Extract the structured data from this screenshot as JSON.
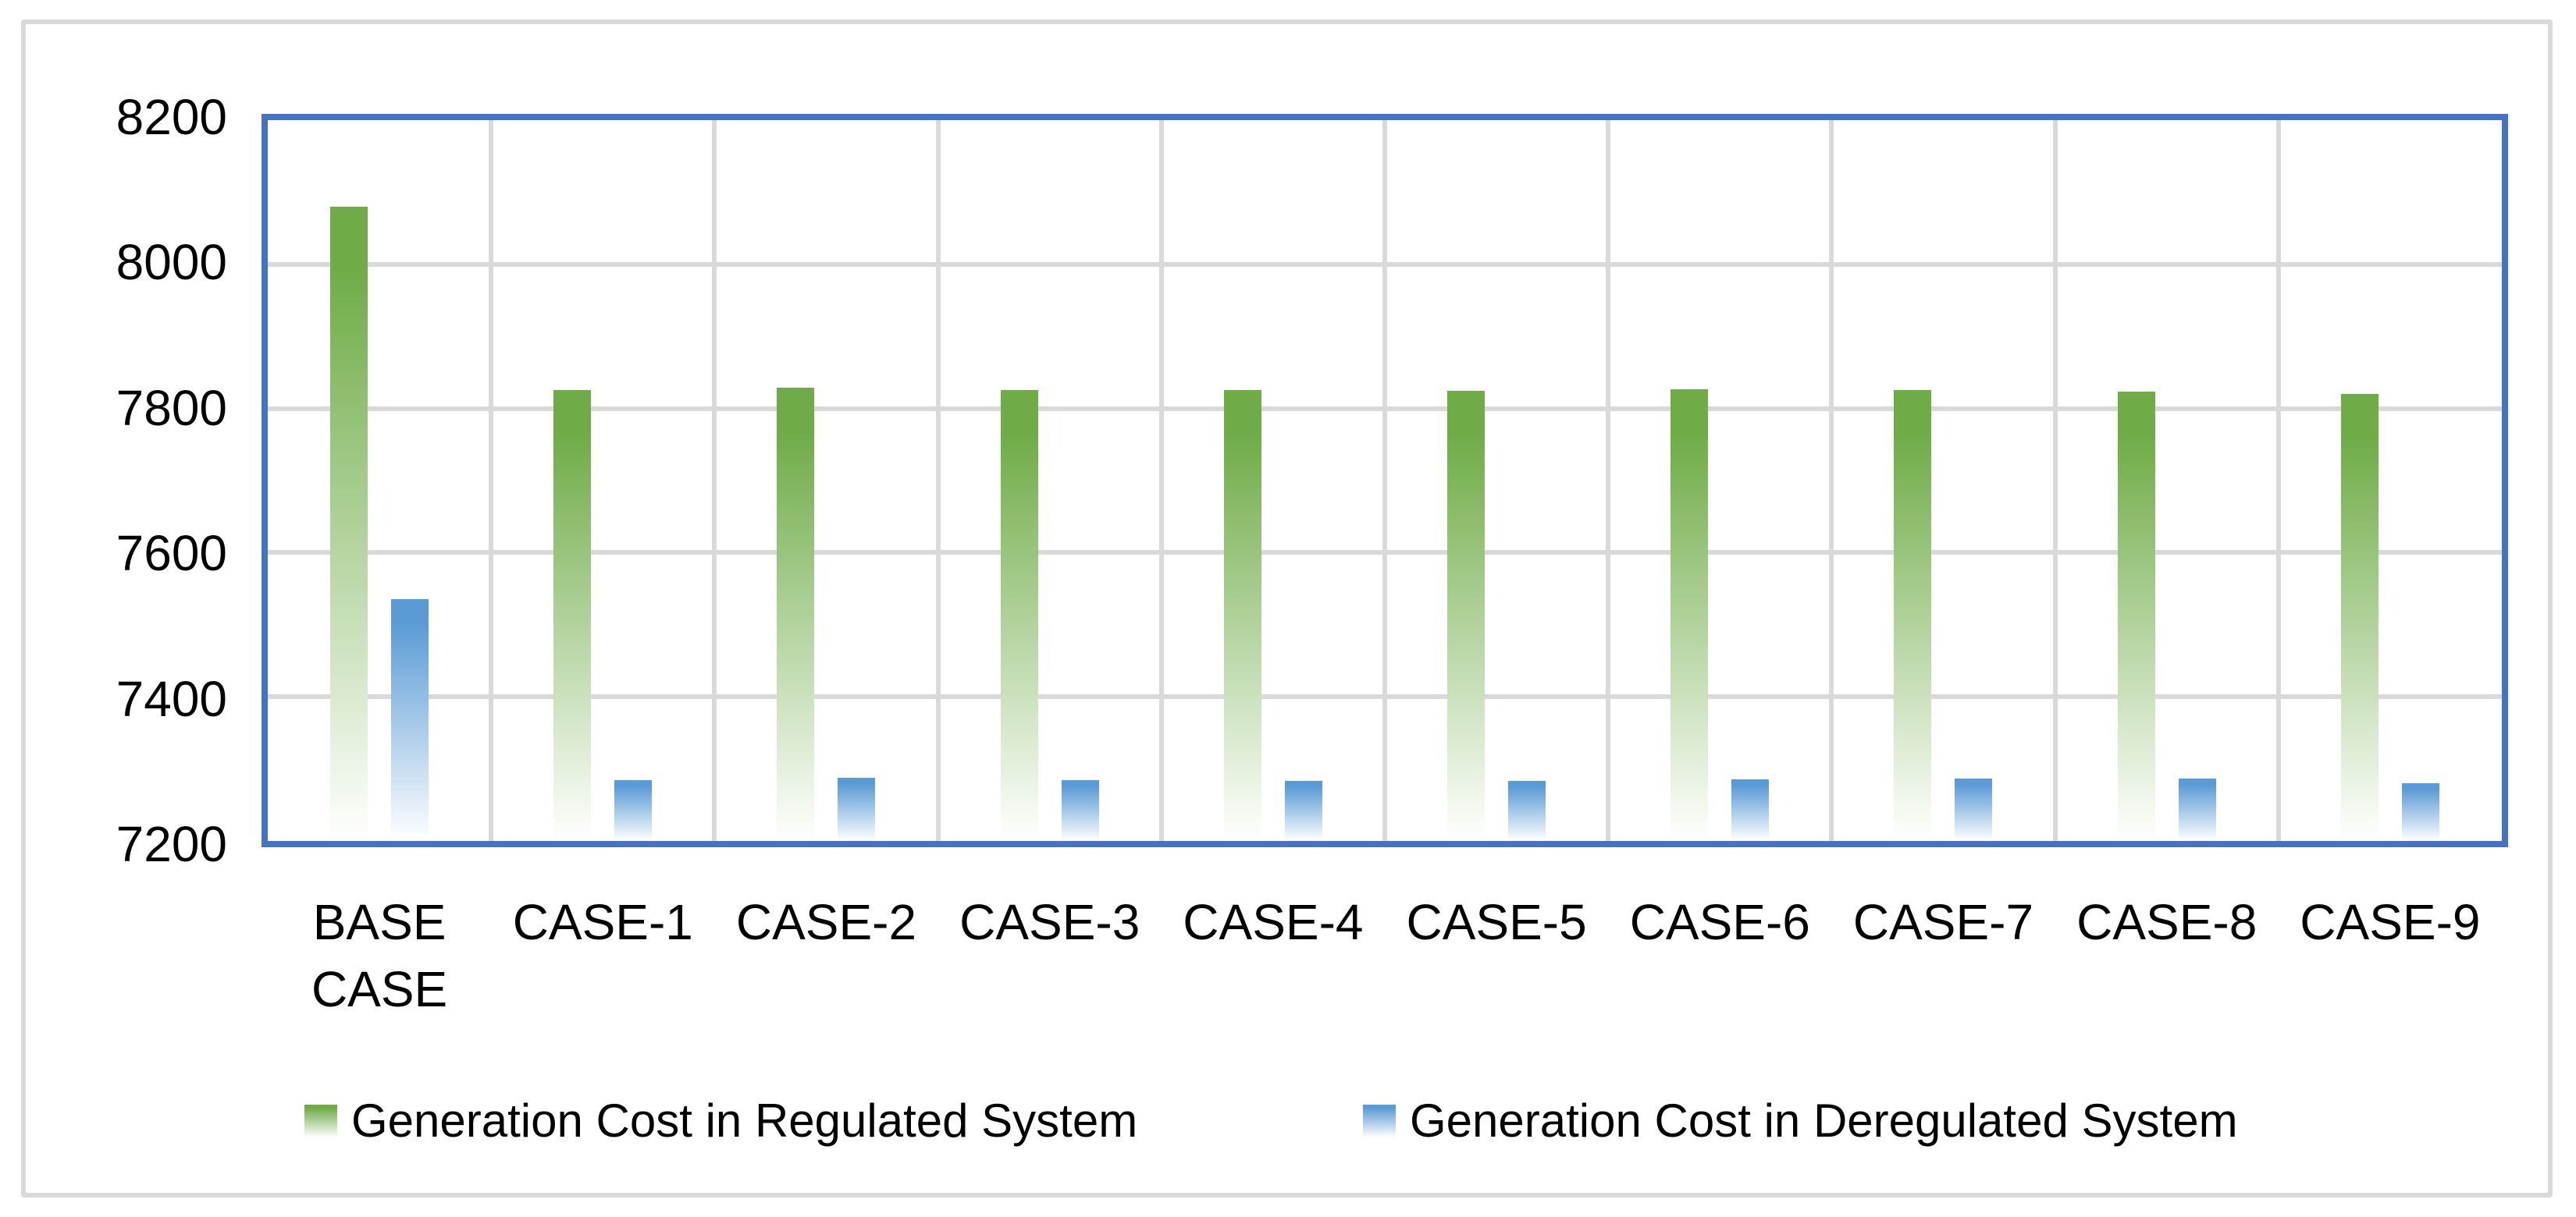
{
  "figure": {
    "background_color": "#FFFFFF",
    "frame_color": "#D9D9D9"
  },
  "chart_data": {
    "type": "bar",
    "title": "",
    "xlabel": "",
    "ylabel": "",
    "categories": [
      "BASE CASE",
      "CASE-1",
      "CASE-2",
      "CASE-3",
      "CASE-4",
      "CASE-5",
      "CASE-6",
      "CASE-7",
      "CASE-8",
      "CASE-9"
    ],
    "series": [
      {
        "name": "Generation Cost in Regulated System",
        "color": "#6FAC47",
        "values": [
          8080,
          7825,
          7829,
          7825,
          7825,
          7824,
          7827,
          7825,
          7823,
          7820
        ]
      },
      {
        "name": "Generation Cost in Deregulated System",
        "color": "#5B9BD5",
        "values": [
          7535,
          7284,
          7288,
          7284,
          7283,
          7283,
          7286,
          7287,
          7287,
          7280
        ]
      }
    ],
    "ylim": [
      7200,
      8200
    ],
    "yticks": [
      7200,
      7400,
      7600,
      7800,
      8000,
      8200
    ],
    "grid": true,
    "gridline_color": "#D9D9D9",
    "plot_border_color": "#4472C4",
    "bar_gradient_to": "#FFFFFF",
    "legend_position": "bottom"
  }
}
